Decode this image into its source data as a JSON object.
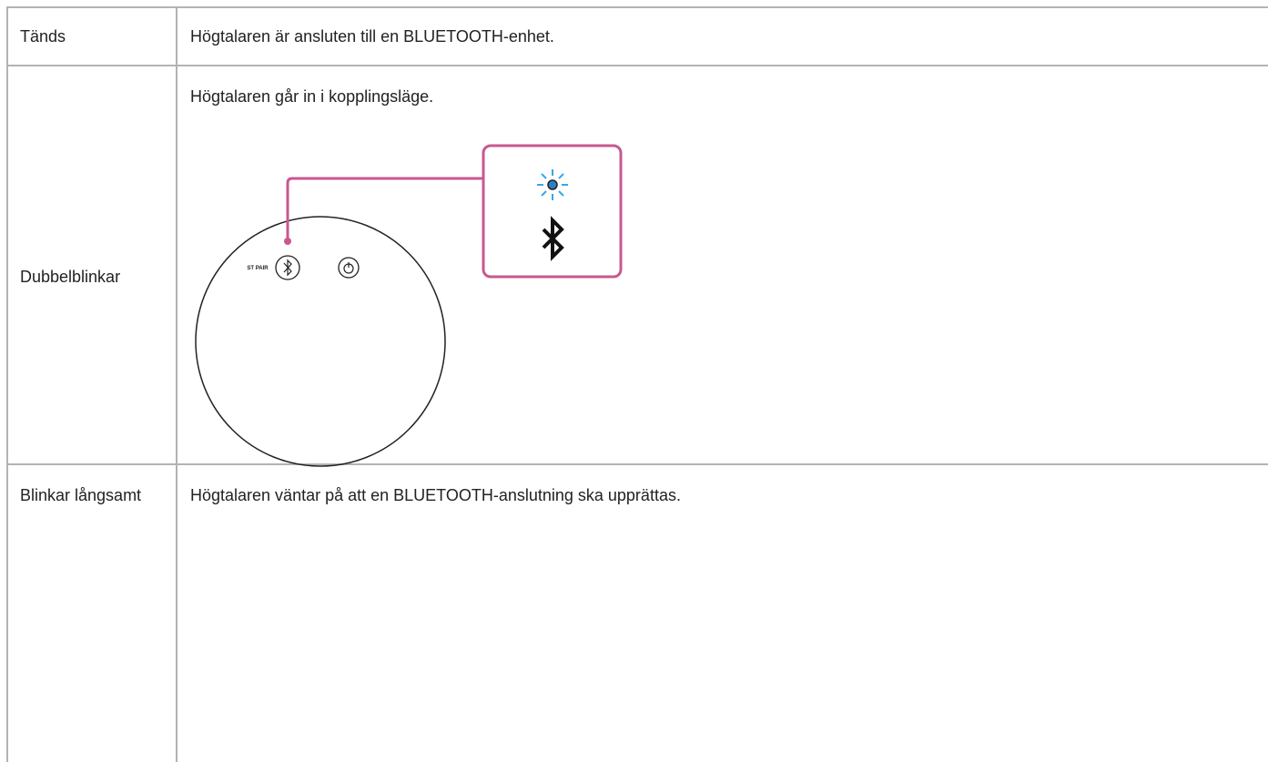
{
  "table": {
    "rows": [
      [
        "Tänds",
        "Högtalaren är ansluten till en BLUETOOTH-enhet."
      ],
      [
        "Dubbelblinkar",
        "Högtalaren går in i kopplingsläge."
      ],
      [
        "Blinkar långsamt",
        "Högtalaren väntar på att en BLUETOOTH-anslutning ska upprättas."
      ]
    ]
  },
  "illustration": {
    "button_label": "ST PAIR"
  }
}
